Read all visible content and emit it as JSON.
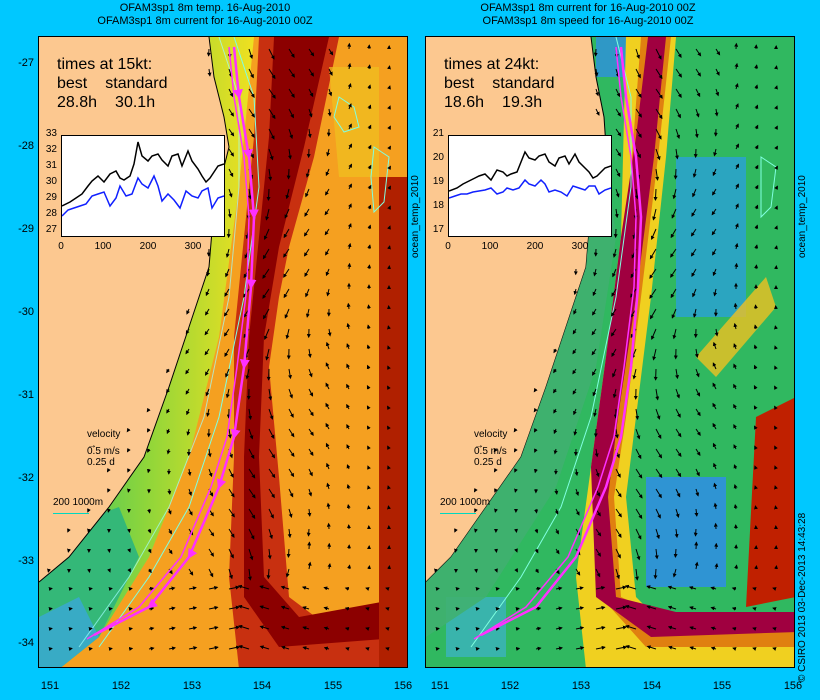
{
  "left_panel": {
    "title_line1": "OFAM3sp1 8m temp. 16-Aug-2010",
    "title_line2": "OFAM3sp1 8m current for 16-Aug-2010 00Z",
    "side_label": "ocean_temp_2010",
    "times_heading": "times at 15kt:",
    "col_best": "best",
    "col_standard": "standard",
    "best_value": "28.8h",
    "standard_value": "30.1h",
    "inset_yticks": [
      "33",
      "32",
      "31",
      "30",
      "29",
      "28",
      "27"
    ],
    "inset_xticks": [
      "0",
      "100",
      "200",
      "300"
    ],
    "velocity_label": "velocity",
    "velocity_speed": "0.5 m/s",
    "velocity_time": "0.25 d",
    "depth_legend": "200  1000m"
  },
  "right_panel": {
    "title_line1": "OFAM3sp1 8m current for 16-Aug-2010 00Z",
    "title_line2": "OFAM3sp1 8m speed for 16-Aug-2010 00Z",
    "side_label": "ocean_temp_2010",
    "times_heading": "times at 24kt:",
    "col_best": "best",
    "col_standard": "standard",
    "best_value": "18.6h",
    "standard_value": "19.3h",
    "inset_yticks": [
      "21",
      "20",
      "19",
      "18",
      "17"
    ],
    "inset_xticks": [
      "0",
      "100",
      "200",
      "300"
    ],
    "velocity_label": "velocity",
    "velocity_speed": "0.5 m/s",
    "velocity_time": "0.25 d",
    "depth_legend": "200  1000m"
  },
  "y_axis_labels": [
    "-27",
    "-28",
    "-29",
    "-30",
    "-31",
    "-32",
    "-33",
    "-34"
  ],
  "x_axis_labels_left": [
    "151",
    "152",
    "153",
    "154",
    "155",
    "156"
  ],
  "x_axis_labels_right": [
    "151",
    "152",
    "153",
    "154",
    "155",
    "156"
  ],
  "credit": "© CSIRO 2013   03-Dec-2013 14:43:28",
  "colors": {
    "background": "#00c8ff",
    "land": "#fcc890",
    "warm_core": "#a00000",
    "route": "#ff30ff"
  }
}
